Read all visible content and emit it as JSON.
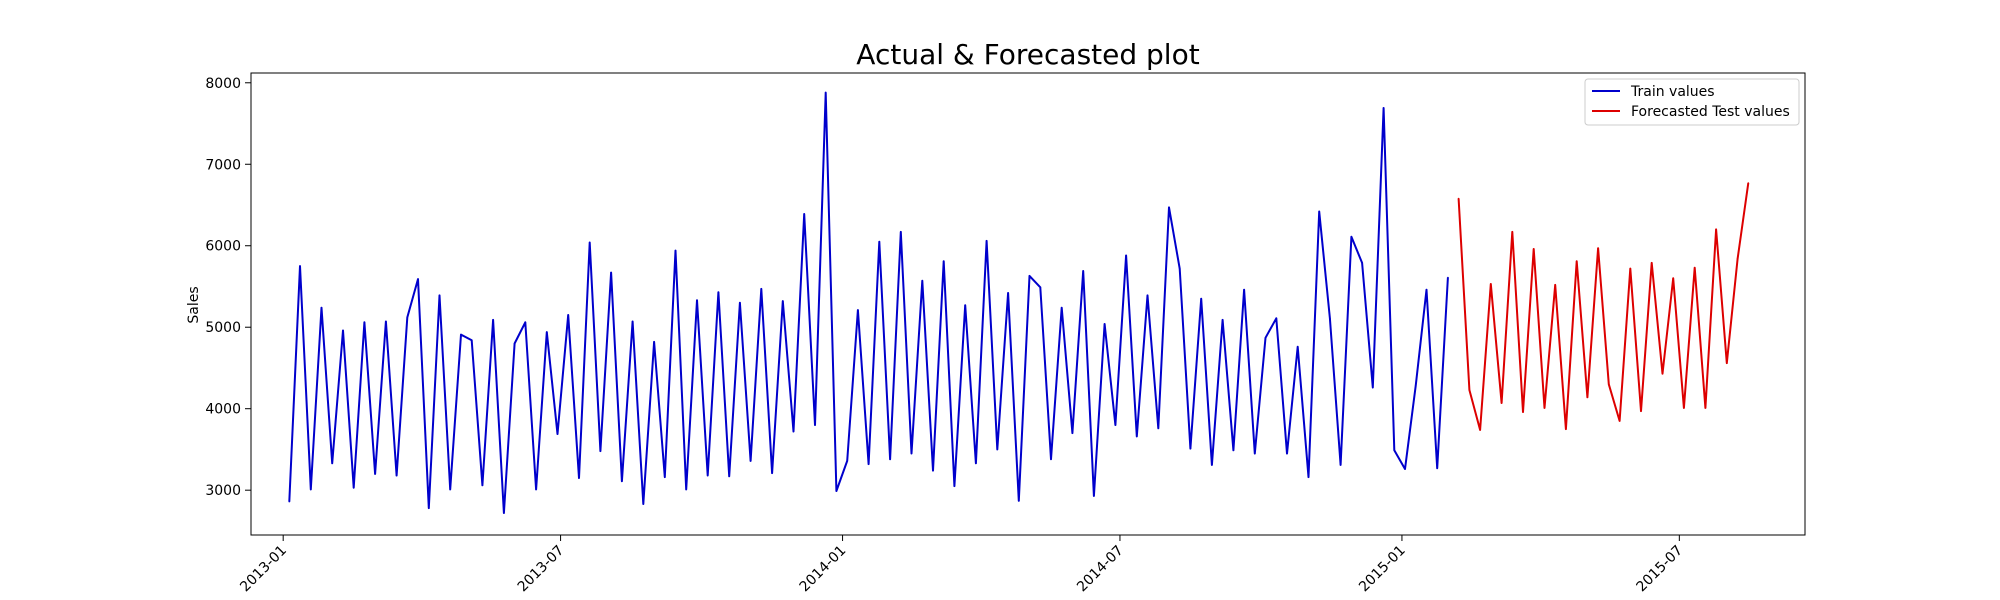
{
  "chart_data": {
    "type": "line",
    "title": "Actual & Forecasted plot",
    "xlabel": "",
    "ylabel": "Sales",
    "ylim": [
      2450,
      8120
    ],
    "xlim": [
      "2012-12-11",
      "2015-09-21"
    ],
    "yticks": [
      3000,
      4000,
      5000,
      6000,
      7000,
      8000
    ],
    "xticks": [
      {
        "date": "2013-01-01",
        "label": "2013-01"
      },
      {
        "date": "2013-07-01",
        "label": "2013-07"
      },
      {
        "date": "2014-01-01",
        "label": "2014-01"
      },
      {
        "date": "2014-07-01",
        "label": "2014-07"
      },
      {
        "date": "2015-01-01",
        "label": "2015-01"
      },
      {
        "date": "2015-07-01",
        "label": "2015-07"
      }
    ],
    "grid": false,
    "legend_position": "top-right",
    "series": [
      {
        "name": "Train values",
        "color": "#0000cc",
        "x": [
          "2013-01-05",
          "2013-01-12",
          "2013-01-19",
          "2013-01-26",
          "2013-02-02",
          "2013-02-09",
          "2013-02-16",
          "2013-02-23",
          "2013-03-02",
          "2013-03-09",
          "2013-03-16",
          "2013-03-23",
          "2013-03-30",
          "2013-04-06",
          "2013-04-13",
          "2013-04-20",
          "2013-04-27",
          "2013-05-04",
          "2013-05-11",
          "2013-05-18",
          "2013-05-25",
          "2013-06-01",
          "2013-06-08",
          "2013-06-15",
          "2013-06-22",
          "2013-06-29",
          "2013-07-06",
          "2013-07-13",
          "2013-07-20",
          "2013-07-27",
          "2013-08-03",
          "2013-08-10",
          "2013-08-17",
          "2013-08-24",
          "2013-08-31",
          "2013-09-07",
          "2013-09-14",
          "2013-09-21",
          "2013-09-28",
          "2013-10-05",
          "2013-10-12",
          "2013-10-19",
          "2013-10-26",
          "2013-11-02",
          "2013-11-09",
          "2013-11-16",
          "2013-11-23",
          "2013-11-30",
          "2013-12-07",
          "2013-12-14",
          "2013-12-21",
          "2013-12-28",
          "2014-01-04",
          "2014-01-11",
          "2014-01-18",
          "2014-01-25",
          "2014-02-01",
          "2014-02-08",
          "2014-02-15",
          "2014-02-22",
          "2014-03-01",
          "2014-03-08",
          "2014-03-15",
          "2014-03-22",
          "2014-03-29",
          "2014-04-05",
          "2014-04-12",
          "2014-04-19",
          "2014-04-26",
          "2014-05-03",
          "2014-05-10",
          "2014-05-17",
          "2014-05-24",
          "2014-05-31",
          "2014-06-07",
          "2014-06-14",
          "2014-06-21",
          "2014-06-28",
          "2014-07-05",
          "2014-07-12",
          "2014-07-19",
          "2014-07-26",
          "2014-08-02",
          "2014-08-09",
          "2014-08-16",
          "2014-08-23",
          "2014-08-30",
          "2014-09-06",
          "2014-09-13",
          "2014-09-20",
          "2014-09-27",
          "2014-10-04",
          "2014-10-11",
          "2014-10-18",
          "2014-10-25",
          "2014-11-01",
          "2014-11-08",
          "2014-11-15",
          "2014-11-22",
          "2014-11-29",
          "2014-12-06",
          "2014-12-13",
          "2014-12-20",
          "2014-12-27",
          "2015-01-03",
          "2015-01-10",
          "2015-01-17",
          "2015-01-24",
          "2015-01-31"
        ],
        "values": [
          2860,
          5750,
          3010,
          5240,
          3330,
          4960,
          3030,
          5060,
          3200,
          5070,
          3180,
          5120,
          5590,
          2780,
          5390,
          3010,
          4910,
          4840,
          3060,
          5090,
          2720,
          4800,
          5060,
          3010,
          4940,
          3690,
          5150,
          3150,
          6040,
          3480,
          5670,
          3110,
          5070,
          2830,
          4820,
          3160,
          5940,
          3010,
          5330,
          3180,
          5430,
          3170,
          5300,
          3360,
          5470,
          3210,
          5320,
          3720,
          6390,
          3800,
          7880,
          2990,
          3360,
          5210,
          3320,
          6050,
          3380,
          6170,
          3450,
          5570,
          3240,
          5810,
          3050,
          5270,
          3330,
          6060,
          3500,
          5420,
          2870,
          5630,
          5490,
          3380,
          5240,
          3700,
          5690,
          2930,
          5040,
          3800,
          5880,
          3660,
          5390,
          3760,
          6470,
          5720,
          3510,
          5350,
          3310,
          5090,
          3490,
          5460,
          3450,
          4870,
          5110,
          3450,
          4760,
          3160,
          6420,
          5110,
          3310,
          6110,
          5790,
          4260,
          7690,
          3490,
          3260,
          4280,
          5460,
          3270,
          5610
        ]
      },
      {
        "name": "Forecasted Test values",
        "color": "#dd0000",
        "x": [
          "2015-02-07",
          "2015-02-14",
          "2015-02-21",
          "2015-02-28",
          "2015-03-07",
          "2015-03-14",
          "2015-03-21",
          "2015-03-28",
          "2015-04-04",
          "2015-04-11",
          "2015-04-18",
          "2015-04-25",
          "2015-05-02",
          "2015-05-09",
          "2015-05-16",
          "2015-05-23",
          "2015-05-30",
          "2015-06-06",
          "2015-06-13",
          "2015-06-20",
          "2015-06-27",
          "2015-07-04",
          "2015-07-11",
          "2015-07-18",
          "2015-07-25",
          "2015-08-01",
          "2015-08-08",
          "2015-08-15"
        ],
        "values": [
          6580,
          4230,
          3740,
          5530,
          4070,
          6170,
          3960,
          5960,
          4010,
          5520,
          3750,
          5810,
          4140,
          5970,
          4300,
          3850,
          5720,
          3970,
          5790,
          4430,
          5600,
          4010,
          5730,
          4010,
          6200,
          4560,
          5840,
          6770
        ]
      }
    ]
  }
}
